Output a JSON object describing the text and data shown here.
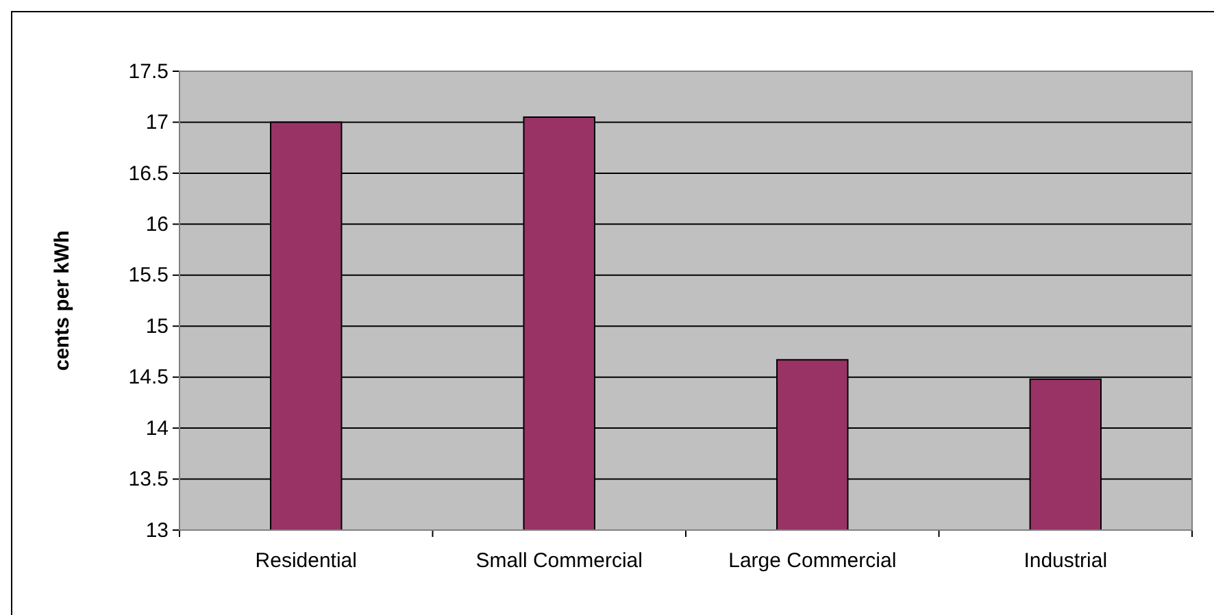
{
  "chart_data": {
    "type": "bar",
    "ylabel": "cents per kWh",
    "categories": [
      "Residential",
      "Small Commercial",
      "Large Commercial",
      "Industrial"
    ],
    "values": [
      17.0,
      17.05,
      14.67,
      14.48
    ],
    "color": "#993366",
    "ylim": [
      13,
      17.5
    ],
    "yticks": [
      13,
      13.5,
      14,
      14.5,
      15,
      15.5,
      16,
      16.5,
      17,
      17.5
    ],
    "grid": "y"
  }
}
